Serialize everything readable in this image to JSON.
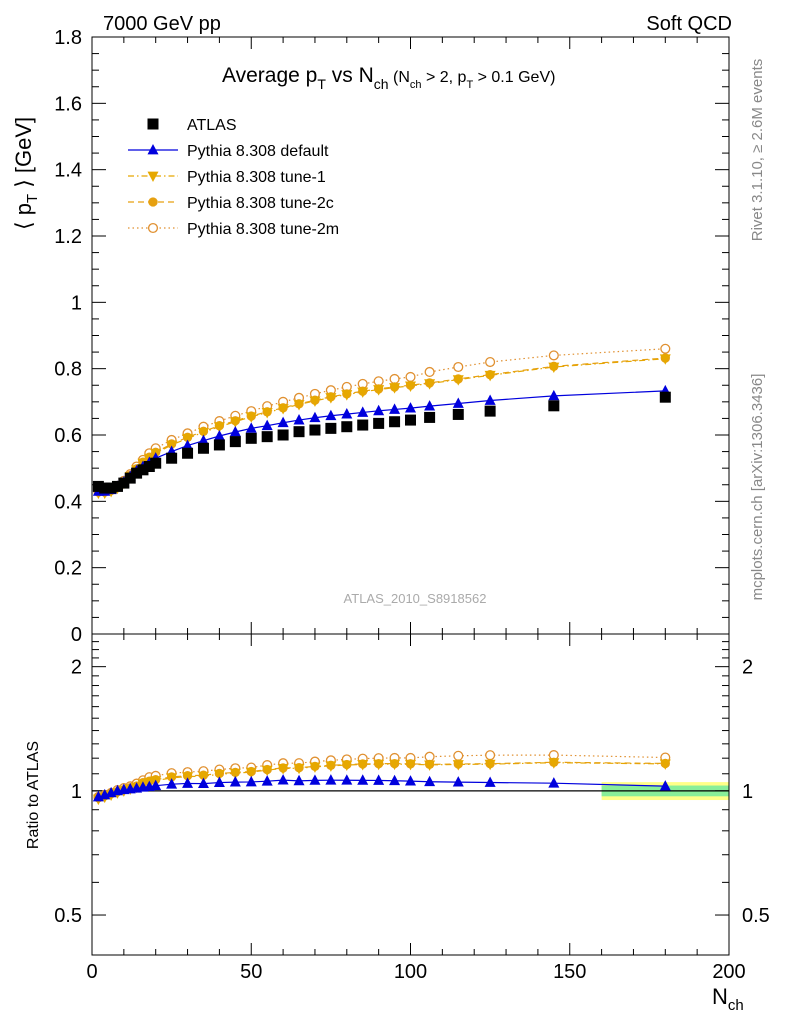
{
  "header": {
    "left": "7000 GeV pp",
    "right": "Soft QCD"
  },
  "side_labels": {
    "rivet": "Rivet 3.1.10, ≥ 2.6M events",
    "mcplots": "mcplots.cern.ch [arXiv:1306.3436]"
  },
  "watermark": "ATLAS_2010_S8918562",
  "chart_data": [
    {
      "type": "scatter",
      "title": "Average p_T vs N_ch (N_ch > 2, p_T > 0.1 GeV)",
      "ylabel": "⟨ p_T ⟩ [GeV]",
      "xlabel": "N_ch",
      "xlim": [
        0,
        200
      ],
      "ylim": [
        0,
        1.8
      ],
      "yticks": [
        "0",
        "0.2",
        "0.4",
        "0.6",
        "0.8",
        "1",
        "1.2",
        "1.4",
        "1.6",
        "1.8"
      ],
      "grid": false,
      "legend_position": "top-left",
      "series": [
        {
          "name": "ATLAS",
          "marker": "square-filled",
          "color": "#000000",
          "x": [
            2,
            4,
            6,
            8,
            10,
            12,
            14,
            16,
            18,
            20,
            25,
            30,
            35,
            40,
            45,
            50,
            55,
            60,
            65,
            70,
            75,
            80,
            85,
            90,
            95,
            100,
            106,
            115,
            125,
            145,
            180
          ],
          "y": [
            0.445,
            0.44,
            0.44,
            0.445,
            0.455,
            0.47,
            0.485,
            0.495,
            0.505,
            0.515,
            0.53,
            0.545,
            0.56,
            0.57,
            0.58,
            0.59,
            0.595,
            0.6,
            0.61,
            0.615,
            0.62,
            0.625,
            0.63,
            0.635,
            0.64,
            0.645,
            0.653,
            0.662,
            0.672,
            0.688,
            0.714
          ]
        },
        {
          "name": "Pythia 8.308 default",
          "marker": "triangle-up-filled",
          "line": "solid",
          "color": "#0000dd",
          "x": [
            2,
            4,
            6,
            8,
            10,
            12,
            14,
            16,
            18,
            20,
            25,
            30,
            35,
            40,
            45,
            50,
            55,
            60,
            65,
            70,
            75,
            80,
            85,
            90,
            95,
            100,
            106,
            115,
            125,
            145,
            180
          ],
          "y": [
            0.43,
            0.43,
            0.435,
            0.445,
            0.458,
            0.475,
            0.492,
            0.505,
            0.517,
            0.53,
            0.55,
            0.568,
            0.583,
            0.597,
            0.609,
            0.62,
            0.628,
            0.637,
            0.645,
            0.652,
            0.658,
            0.663,
            0.668,
            0.673,
            0.677,
            0.681,
            0.687,
            0.695,
            0.704,
            0.718,
            0.733
          ]
        },
        {
          "name": "Pythia 8.308 tune-1",
          "marker": "triangle-down-filled",
          "line": "dash-dot",
          "color": "#e6a800",
          "x": [
            2,
            4,
            6,
            8,
            10,
            12,
            14,
            16,
            18,
            20,
            25,
            30,
            35,
            40,
            45,
            50,
            55,
            60,
            65,
            70,
            75,
            80,
            85,
            90,
            95,
            100,
            106,
            115,
            125,
            145,
            180
          ],
          "y": [
            0.425,
            0.425,
            0.43,
            0.44,
            0.455,
            0.475,
            0.495,
            0.515,
            0.53,
            0.545,
            0.57,
            0.59,
            0.608,
            0.625,
            0.64,
            0.655,
            0.668,
            0.68,
            0.692,
            0.703,
            0.713,
            0.722,
            0.73,
            0.737,
            0.743,
            0.748,
            0.755,
            0.767,
            0.78,
            0.805,
            0.83
          ]
        },
        {
          "name": "Pythia 8.308 tune-2c",
          "marker": "circle-filled",
          "line": "dashed",
          "color": "#e6a010",
          "x": [
            2,
            4,
            6,
            8,
            10,
            12,
            14,
            16,
            18,
            20,
            25,
            30,
            35,
            40,
            45,
            50,
            55,
            60,
            65,
            70,
            75,
            80,
            85,
            90,
            95,
            100,
            106,
            115,
            125,
            145,
            180
          ],
          "y": [
            0.428,
            0.428,
            0.433,
            0.443,
            0.458,
            0.478,
            0.498,
            0.518,
            0.533,
            0.548,
            0.573,
            0.593,
            0.611,
            0.628,
            0.643,
            0.657,
            0.67,
            0.682,
            0.694,
            0.705,
            0.715,
            0.724,
            0.732,
            0.739,
            0.745,
            0.75,
            0.757,
            0.769,
            0.782,
            0.807,
            0.832
          ]
        },
        {
          "name": "Pythia 8.308 tune-2m",
          "marker": "circle-open",
          "line": "dotted",
          "color": "#e09030",
          "x": [
            2,
            4,
            6,
            8,
            10,
            12,
            14,
            16,
            18,
            20,
            25,
            30,
            35,
            40,
            45,
            50,
            55,
            60,
            65,
            70,
            75,
            80,
            85,
            90,
            95,
            100,
            106,
            115,
            125,
            145,
            180
          ],
          "y": [
            0.43,
            0.43,
            0.435,
            0.447,
            0.462,
            0.482,
            0.505,
            0.525,
            0.545,
            0.56,
            0.585,
            0.605,
            0.625,
            0.642,
            0.658,
            0.672,
            0.687,
            0.7,
            0.712,
            0.724,
            0.735,
            0.745,
            0.754,
            0.762,
            0.769,
            0.775,
            0.79,
            0.805,
            0.82,
            0.84,
            0.86
          ]
        }
      ]
    },
    {
      "type": "scatter",
      "ylabel": "Ratio to ATLAS",
      "xlabel": "N_ch",
      "xlim": [
        0,
        200
      ],
      "ylim": [
        0.4,
        2.4
      ],
      "log_y": true,
      "yticks": [
        "0.5",
        "1",
        "2"
      ],
      "xticks": [
        "0",
        "50",
        "100",
        "150",
        "200"
      ],
      "reference_band": {
        "x_from": 160,
        "x_to": 200,
        "inner": [
          0.97,
          1.03
        ],
        "outer": [
          0.95,
          1.05
        ]
      },
      "series": [
        {
          "name": "Pythia 8.308 default",
          "values_from": "ratio"
        },
        {
          "name": "Pythia 8.308 tune-1",
          "values_from": "ratio"
        },
        {
          "name": "Pythia 8.308 tune-2c",
          "values_from": "ratio"
        },
        {
          "name": "Pythia 8.308 tune-2m",
          "values_from": "ratio"
        }
      ]
    }
  ]
}
